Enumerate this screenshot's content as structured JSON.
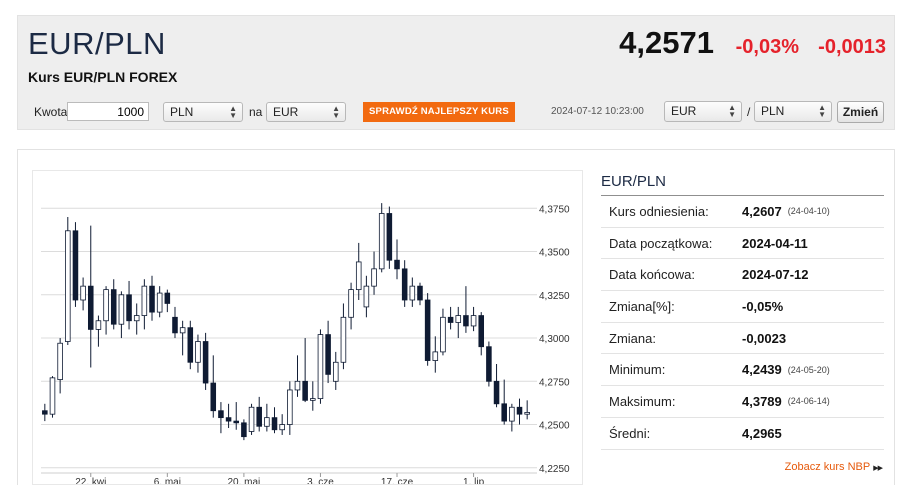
{
  "header": {
    "pair": "EUR/PLN",
    "subtitle": "Kurs EUR/PLN FOREX",
    "price": "4,2571",
    "change_pct": "-0,03%",
    "change_abs": "-0,0013"
  },
  "converter": {
    "amount_label": "Kwota",
    "amount_value": "1000",
    "from_currency": "PLN",
    "to_label": "na",
    "to_currency": "EUR",
    "best_rate_button": "SPRAWDŹ NAJLEPSZY KURS",
    "timestamp": "2024-07-12 10:23:00",
    "base_select": "EUR",
    "separator": "/",
    "quote_select": "PLN",
    "change_button": "Zmień"
  },
  "info": {
    "title": "EUR/PLN",
    "rows": [
      {
        "label": "Kurs odniesienia:",
        "value": "4,2607",
        "date": "(24-04-10)"
      },
      {
        "label": "Data początkowa:",
        "value": "2024-04-11",
        "date": ""
      },
      {
        "label": "Data końcowa:",
        "value": "2024-07-12",
        "date": ""
      },
      {
        "label": "Zmiana[%]:",
        "value": "-0,05%",
        "date": ""
      },
      {
        "label": "Zmiana:",
        "value": "-0,0023",
        "date": ""
      },
      {
        "label": "Minimum:",
        "value": "4,2439",
        "date": "(24-05-20)"
      },
      {
        "label": "Maksimum:",
        "value": "4,3789",
        "date": "(24-06-14)"
      },
      {
        "label": "Średni:",
        "value": "4,2965",
        "date": ""
      }
    ],
    "nbp_link": "Zobacz kurs NBP"
  },
  "colors": {
    "up": "#ffffff",
    "down": "#0f1b33",
    "accent": "#f26a10",
    "negative": "#e5222b"
  },
  "chart_data": {
    "type": "candlestick",
    "y_ticks": [
      "4,2250",
      "4,2500",
      "4,2750",
      "4,3000",
      "4,3250",
      "4,3500",
      "4,3750"
    ],
    "y_tick_values": [
      4.225,
      4.25,
      4.275,
      4.3,
      4.325,
      4.35,
      4.375
    ],
    "ylim": [
      4.222,
      4.385
    ],
    "x_labels": [
      "22. kwi",
      "6. maj",
      "20. maj",
      "3. cze",
      "17. cze",
      "1. lip"
    ],
    "x_label_index": [
      6,
      16,
      26,
      36,
      46,
      56
    ],
    "grid": true,
    "candles": [
      {
        "o": 4.258,
        "h": 4.262,
        "l": 4.252,
        "c": 4.256
      },
      {
        "o": 4.256,
        "h": 4.278,
        "l": 4.254,
        "c": 4.277
      },
      {
        "o": 4.276,
        "h": 4.3,
        "l": 4.268,
        "c": 4.297
      },
      {
        "o": 4.298,
        "h": 4.37,
        "l": 4.296,
        "c": 4.362
      },
      {
        "o": 4.362,
        "h": 4.367,
        "l": 4.318,
        "c": 4.322
      },
      {
        "o": 4.322,
        "h": 4.335,
        "l": 4.316,
        "c": 4.33
      },
      {
        "o": 4.33,
        "h": 4.365,
        "l": 4.283,
        "c": 4.305
      },
      {
        "o": 4.305,
        "h": 4.313,
        "l": 4.295,
        "c": 4.31
      },
      {
        "o": 4.31,
        "h": 4.33,
        "l": 4.302,
        "c": 4.328
      },
      {
        "o": 4.328,
        "h": 4.334,
        "l": 4.305,
        "c": 4.308
      },
      {
        "o": 4.308,
        "h": 4.327,
        "l": 4.3,
        "c": 4.325
      },
      {
        "o": 4.325,
        "h": 4.333,
        "l": 4.305,
        "c": 4.31
      },
      {
        "o": 4.31,
        "h": 4.32,
        "l": 4.302,
        "c": 4.313
      },
      {
        "o": 4.313,
        "h": 4.334,
        "l": 4.305,
        "c": 4.33
      },
      {
        "o": 4.33,
        "h": 4.336,
        "l": 4.31,
        "c": 4.315
      },
      {
        "o": 4.315,
        "h": 4.33,
        "l": 4.312,
        "c": 4.326
      },
      {
        "o": 4.326,
        "h": 4.328,
        "l": 4.315,
        "c": 4.32
      },
      {
        "o": 4.312,
        "h": 4.318,
        "l": 4.3,
        "c": 4.303
      },
      {
        "o": 4.303,
        "h": 4.31,
        "l": 4.29,
        "c": 4.306
      },
      {
        "o": 4.306,
        "h": 4.31,
        "l": 4.282,
        "c": 4.286
      },
      {
        "o": 4.286,
        "h": 4.302,
        "l": 4.28,
        "c": 4.298
      },
      {
        "o": 4.298,
        "h": 4.303,
        "l": 4.27,
        "c": 4.274
      },
      {
        "o": 4.274,
        "h": 4.29,
        "l": 4.254,
        "c": 4.258
      },
      {
        "o": 4.258,
        "h": 4.263,
        "l": 4.245,
        "c": 4.254
      },
      {
        "o": 4.254,
        "h": 4.262,
        "l": 4.248,
        "c": 4.252
      },
      {
        "o": 4.252,
        "h": 4.263,
        "l": 4.247,
        "c": 4.251
      },
      {
        "o": 4.251,
        "h": 4.253,
        "l": 4.241,
        "c": 4.243
      },
      {
        "o": 4.246,
        "h": 4.262,
        "l": 4.244,
        "c": 4.26
      },
      {
        "o": 4.26,
        "h": 4.266,
        "l": 4.246,
        "c": 4.249
      },
      {
        "o": 4.249,
        "h": 4.262,
        "l": 4.246,
        "c": 4.254
      },
      {
        "o": 4.254,
        "h": 4.26,
        "l": 4.245,
        "c": 4.247
      },
      {
        "o": 4.247,
        "h": 4.256,
        "l": 4.244,
        "c": 4.25
      },
      {
        "o": 4.25,
        "h": 4.275,
        "l": 4.244,
        "c": 4.27
      },
      {
        "o": 4.27,
        "h": 4.29,
        "l": 4.266,
        "c": 4.275
      },
      {
        "o": 4.275,
        "h": 4.3,
        "l": 4.263,
        "c": 4.264
      },
      {
        "o": 4.264,
        "h": 4.275,
        "l": 4.258,
        "c": 4.265
      },
      {
        "o": 4.265,
        "h": 4.305,
        "l": 4.262,
        "c": 4.302
      },
      {
        "o": 4.302,
        "h": 4.31,
        "l": 4.274,
        "c": 4.279
      },
      {
        "o": 4.275,
        "h": 4.292,
        "l": 4.27,
        "c": 4.286
      },
      {
        "o": 4.286,
        "h": 4.32,
        "l": 4.282,
        "c": 4.312
      },
      {
        "o": 4.312,
        "h": 4.332,
        "l": 4.305,
        "c": 4.328
      },
      {
        "o": 4.328,
        "h": 4.355,
        "l": 4.322,
        "c": 4.344
      },
      {
        "o": 4.318,
        "h": 4.336,
        "l": 4.312,
        "c": 4.33
      },
      {
        "o": 4.33,
        "h": 4.35,
        "l": 4.325,
        "c": 4.34
      },
      {
        "o": 4.34,
        "h": 4.378,
        "l": 4.338,
        "c": 4.372
      },
      {
        "o": 4.372,
        "h": 4.376,
        "l": 4.34,
        "c": 4.345
      },
      {
        "o": 4.345,
        "h": 4.357,
        "l": 4.334,
        "c": 4.34
      },
      {
        "o": 4.34,
        "h": 4.345,
        "l": 4.318,
        "c": 4.322
      },
      {
        "o": 4.322,
        "h": 4.335,
        "l": 4.318,
        "c": 4.33
      },
      {
        "o": 4.33,
        "h": 4.332,
        "l": 4.319,
        "c": 4.322
      },
      {
        "o": 4.322,
        "h": 4.326,
        "l": 4.284,
        "c": 4.287
      },
      {
        "o": 4.287,
        "h": 4.301,
        "l": 4.28,
        "c": 4.292
      },
      {
        "o": 4.292,
        "h": 4.317,
        "l": 4.29,
        "c": 4.312
      },
      {
        "o": 4.312,
        "h": 4.318,
        "l": 4.305,
        "c": 4.309
      },
      {
        "o": 4.309,
        "h": 4.318,
        "l": 4.3,
        "c": 4.313
      },
      {
        "o": 4.313,
        "h": 4.33,
        "l": 4.303,
        "c": 4.307
      },
      {
        "o": 4.307,
        "h": 4.318,
        "l": 4.304,
        "c": 4.313
      },
      {
        "o": 4.313,
        "h": 4.315,
        "l": 4.29,
        "c": 4.295
      },
      {
        "o": 4.295,
        "h": 4.298,
        "l": 4.272,
        "c": 4.275
      },
      {
        "o": 4.275,
        "h": 4.285,
        "l": 4.26,
        "c": 4.262
      },
      {
        "o": 4.262,
        "h": 4.276,
        "l": 4.25,
        "c": 4.252
      },
      {
        "o": 4.252,
        "h": 4.262,
        "l": 4.246,
        "c": 4.26
      },
      {
        "o": 4.26,
        "h": 4.265,
        "l": 4.25,
        "c": 4.256
      },
      {
        "o": 4.256,
        "h": 4.264,
        "l": 4.253,
        "c": 4.257
      }
    ]
  }
}
